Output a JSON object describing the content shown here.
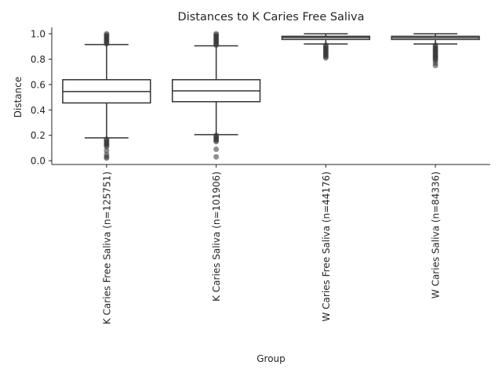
{
  "chart_data": {
    "type": "box",
    "title": "Distances to K Caries Free Saliva",
    "xlabel": "Group",
    "ylabel": "Distance",
    "ylim": [
      -0.03,
      1.05
    ],
    "yticks": [
      "0.0",
      "0.2",
      "0.4",
      "0.6",
      "0.8",
      "1.0"
    ],
    "grid": false,
    "categories": [
      "K Caries Free Saliva (n=125751)",
      "K Caries Saliva (n=101906)",
      "W Caries Free Saliva (n=44176)",
      "W Caries Saliva (n=84336)"
    ],
    "boxes": [
      {
        "q1": 0.455,
        "median": 0.545,
        "q3": 0.638,
        "whisker_low": 0.18,
        "whisker_high": 0.915,
        "fliers_low": [
          0.02,
          0.03,
          0.05,
          0.08,
          0.11,
          0.12,
          0.13,
          0.14,
          0.15,
          0.16,
          0.17
        ],
        "fliers_high": [
          0.92,
          0.93,
          0.94,
          0.95,
          0.96,
          0.97,
          0.98,
          0.99,
          1.0
        ]
      },
      {
        "q1": 0.465,
        "median": 0.55,
        "q3": 0.638,
        "whisker_low": 0.205,
        "whisker_high": 0.905,
        "fliers_low": [
          0.03,
          0.09,
          0.15,
          0.16,
          0.17,
          0.18,
          0.19,
          0.2
        ],
        "fliers_high": [
          0.91,
          0.92,
          0.93,
          0.94,
          0.95,
          0.96,
          0.97,
          0.98,
          0.99,
          1.0
        ]
      },
      {
        "q1": 0.955,
        "median": 0.97,
        "q3": 0.98,
        "whisker_low": 0.92,
        "whisker_high": 1.0,
        "fliers_low": [
          0.81,
          0.82,
          0.83,
          0.84,
          0.85,
          0.86,
          0.87,
          0.88,
          0.89,
          0.9,
          0.91
        ],
        "fliers_high": []
      },
      {
        "q1": 0.955,
        "median": 0.968,
        "q3": 0.98,
        "whisker_low": 0.92,
        "whisker_high": 1.0,
        "fliers_low": [
          0.75,
          0.77,
          0.79,
          0.8,
          0.81,
          0.82,
          0.83,
          0.84,
          0.85,
          0.86,
          0.87,
          0.88,
          0.89,
          0.9,
          0.91
        ],
        "fliers_high": []
      }
    ]
  }
}
